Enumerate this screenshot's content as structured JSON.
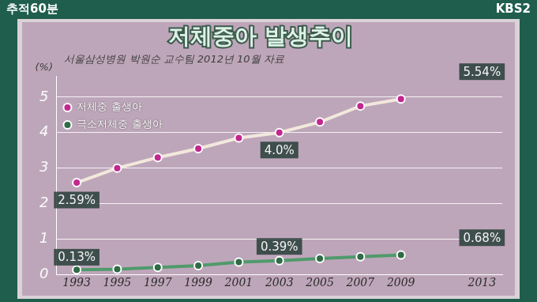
{
  "logo": "추적60분",
  "channel": "KBS2",
  "chart_data": {
    "type": "line",
    "title": "저체중아 발생추이",
    "subtitle": "서울삼성병원 박원순 교수팀 2012년 10월 자료",
    "y_label": "(%)",
    "x": [
      1993,
      1995,
      1997,
      1999,
      2001,
      2003,
      2005,
      2007,
      2009
    ],
    "series": [
      {
        "name": "저체중 출생아",
        "color": "#f2e8dc",
        "marker": "circle",
        "values": [
          2.59,
          3.0,
          3.3,
          3.55,
          3.85,
          4.0,
          4.3,
          4.75,
          4.95
        ]
      },
      {
        "name": "극소저체중 출생아",
        "color": "#4f9a6b",
        "marker": "circle",
        "values": [
          0.13,
          0.15,
          0.2,
          0.25,
          0.35,
          0.39,
          0.45,
          0.5,
          0.55
        ]
      }
    ],
    "xlim": [
      1992,
      2014
    ],
    "xticks": [
      1993,
      1995,
      1997,
      1999,
      2001,
      2003,
      2005,
      2007,
      2009,
      2013
    ],
    "ylim": [
      0,
      5.6
    ],
    "yticks": [
      0,
      1,
      2,
      3,
      4,
      5
    ],
    "grid": true,
    "legend": "upper left",
    "annotations": [
      {
        "text": "2.59%",
        "x": 1993,
        "y": 2.59
      },
      {
        "text": "4.0%",
        "x": 2003,
        "y": 4.0
      },
      {
        "text": "5.54%",
        "x": 2013,
        "y": 5.54
      },
      {
        "text": "0.13%",
        "x": 1993,
        "y": 0.13
      },
      {
        "text": "0.39%",
        "x": 2003,
        "y": 0.39
      },
      {
        "text": "0.68%",
        "x": 2013,
        "y": 0.68
      }
    ]
  }
}
